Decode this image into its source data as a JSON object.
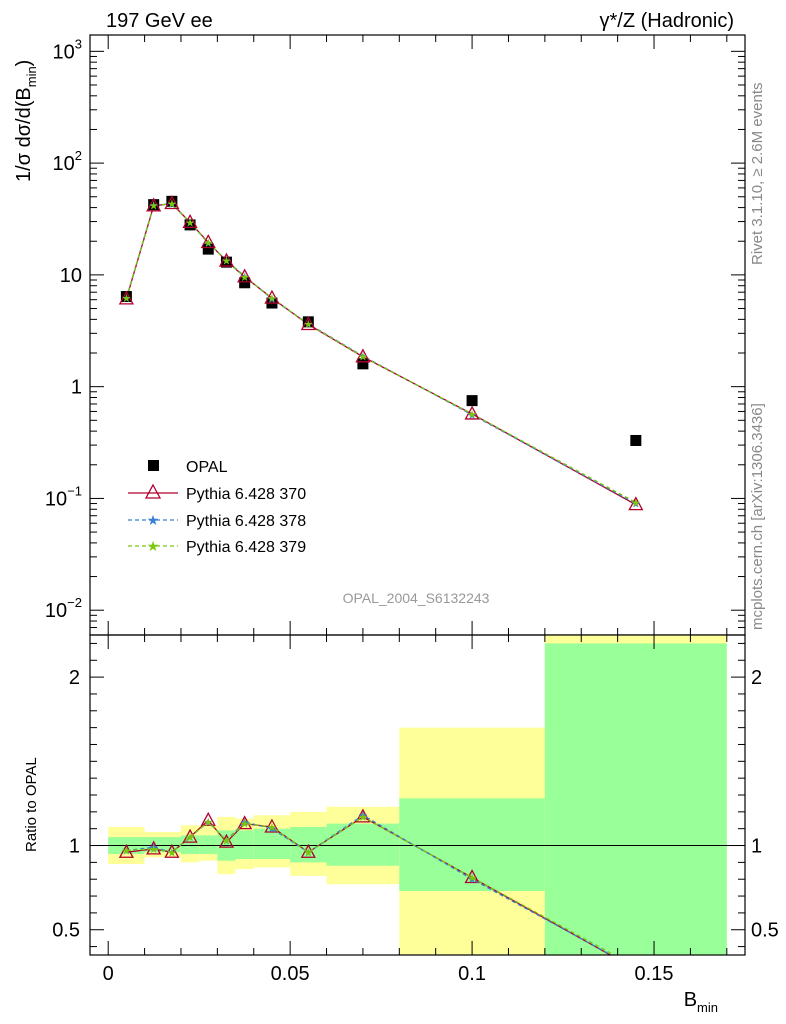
{
  "header": {
    "left_title": "197 GeV ee",
    "right_title": "γ*/Z (Hadronic)"
  },
  "side_labels": {
    "rivet": "Rivet 3.1.10, ≥ 2.6M events",
    "mcplots": "mcplots.cern.ch [arXiv:1306.3436]"
  },
  "analysis_id": "OPAL_2004_S6132243",
  "colors": {
    "data": "#000000",
    "p370": "#b0002c",
    "p378": "#3a7fd5",
    "p379": "#7ac70c",
    "band_inner": "#99ff99",
    "band_outer": "#ffff99"
  },
  "chart_data": [
    {
      "type": "scatter",
      "scale": "log",
      "ylabel_main": "1/σ dσ/d(B",
      "ylabel_sub": "min",
      "ylabel_end": ")",
      "xlim": [
        -0.005,
        0.175
      ],
      "ylim": [
        0.006,
        1400
      ],
      "y_ticks": [
        {
          "v": 0.01,
          "base": "10",
          "exp": "−2"
        },
        {
          "v": 0.1,
          "base": "10",
          "exp": "−1"
        },
        {
          "v": 1,
          "base": "1",
          "exp": ""
        },
        {
          "v": 10,
          "base": "10",
          "exp": ""
        },
        {
          "v": 100,
          "base": "10",
          "exp": "2"
        },
        {
          "v": 1000,
          "base": "10",
          "exp": "3"
        }
      ],
      "x": [
        0.005,
        0.0125,
        0.0175,
        0.0225,
        0.0275,
        0.0325,
        0.0375,
        0.045,
        0.055,
        0.07,
        0.1,
        0.145
      ],
      "data": {
        "name": "OPAL",
        "values": [
          6.4,
          42.5,
          45.5,
          28.0,
          17.0,
          13.0,
          8.5,
          5.6,
          3.8,
          1.6,
          0.75,
          0.33
        ]
      },
      "series": [
        {
          "name": "Pythia 6.428 370",
          "values": [
            6.1,
            41.5,
            43.5,
            29.5,
            19.5,
            13.3,
            9.6,
            6.2,
            3.6,
            1.85,
            0.57,
            0.088
          ]
        },
        {
          "name": "Pythia 6.428 378",
          "values": [
            6.2,
            42.0,
            43.0,
            29.3,
            19.3,
            13.5,
            9.7,
            6.1,
            3.65,
            1.88,
            0.56,
            0.09
          ]
        },
        {
          "name": "Pythia 6.428 379",
          "values": [
            6.2,
            41.8,
            43.3,
            29.4,
            19.4,
            13.4,
            9.6,
            6.2,
            3.62,
            1.86,
            0.57,
            0.092
          ]
        }
      ]
    },
    {
      "type": "line",
      "ylabel": "Ratio to OPAL",
      "xlabel_main": "B",
      "xlabel_sub": "min",
      "xlim": [
        -0.005,
        0.175
      ],
      "ylim": [
        0.35,
        2.25
      ],
      "x_ticks": [
        {
          "v": 0,
          "label": "0"
        },
        {
          "v": 0.05,
          "label": "0.05"
        },
        {
          "v": 0.1,
          "label": "0.1"
        },
        {
          "v": 0.15,
          "label": "0.15"
        }
      ],
      "y_ticks": [
        {
          "v": 0.5,
          "label": "0.5"
        },
        {
          "v": 1,
          "label": "1"
        },
        {
          "v": 2,
          "label": "2"
        }
      ],
      "bands": [
        {
          "x0": 0.0,
          "x1": 0.01,
          "inner": [
            0.95,
            1.05
          ],
          "outer": [
            0.89,
            1.11
          ]
        },
        {
          "x0": 0.01,
          "x1": 0.02,
          "inner": [
            0.96,
            1.05
          ],
          "outer": [
            0.93,
            1.08
          ]
        },
        {
          "x0": 0.02,
          "x1": 0.025,
          "inner": [
            0.95,
            1.06
          ],
          "outer": [
            0.9,
            1.12
          ]
        },
        {
          "x0": 0.025,
          "x1": 0.03,
          "inner": [
            0.95,
            1.06
          ],
          "outer": [
            0.91,
            1.12
          ]
        },
        {
          "x0": 0.03,
          "x1": 0.035,
          "inner": [
            0.91,
            1.09
          ],
          "outer": [
            0.83,
            1.17
          ]
        },
        {
          "x0": 0.035,
          "x1": 0.04,
          "inner": [
            0.92,
            1.09
          ],
          "outer": [
            0.86,
            1.16
          ]
        },
        {
          "x0": 0.04,
          "x1": 0.05,
          "inner": [
            0.92,
            1.1
          ],
          "outer": [
            0.87,
            1.18
          ]
        },
        {
          "x0": 0.05,
          "x1": 0.06,
          "inner": [
            0.9,
            1.11
          ],
          "outer": [
            0.82,
            1.2
          ]
        },
        {
          "x0": 0.06,
          "x1": 0.08,
          "inner": [
            0.88,
            1.13
          ],
          "outer": [
            0.77,
            1.23
          ]
        },
        {
          "x0": 0.08,
          "x1": 0.12,
          "inner": [
            0.73,
            1.28
          ],
          "outer": [
            0.35,
            1.7
          ]
        },
        {
          "x0": 0.12,
          "x1": 0.17,
          "inner": [
            0.35,
            2.2
          ],
          "outer": [
            0.35,
            2.25
          ]
        }
      ],
      "ratios": [
        {
          "name": "Pythia 6.428 370",
          "values": [
            0.96,
            0.98,
            0.96,
            1.05,
            1.15,
            1.02,
            1.13,
            1.11,
            0.96,
            1.17,
            0.81,
            0.265
          ]
        },
        {
          "name": "Pythia 6.428 378",
          "values": [
            0.97,
            0.99,
            0.96,
            1.05,
            1.14,
            1.03,
            1.14,
            1.1,
            0.96,
            1.18,
            0.8,
            0.27
          ]
        },
        {
          "name": "Pythia 6.428 379",
          "values": [
            0.97,
            0.98,
            0.96,
            1.05,
            1.14,
            1.03,
            1.13,
            1.11,
            0.96,
            1.17,
            0.81,
            0.28
          ]
        }
      ]
    }
  ]
}
